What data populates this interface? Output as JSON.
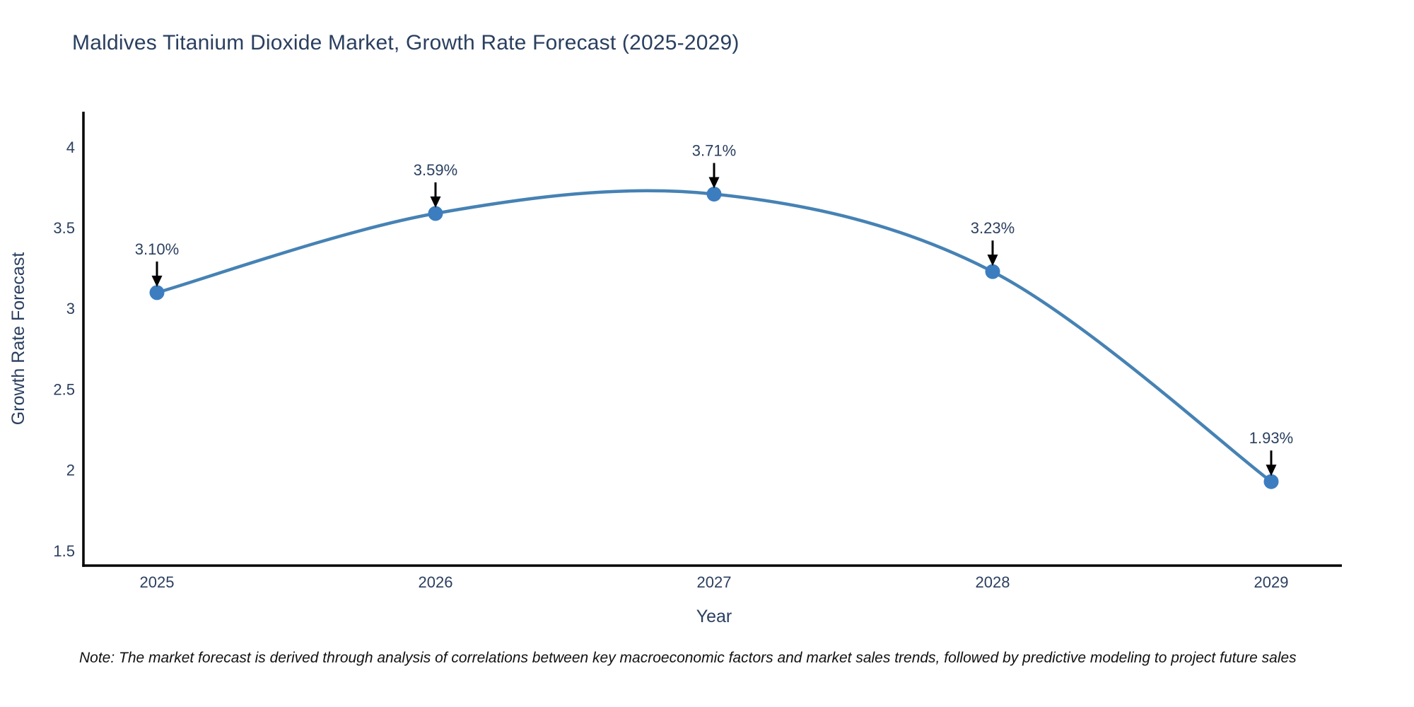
{
  "chart": {
    "title": "Maldives Titanium Dioxide Market, Growth Rate Forecast (2025-2029)"
  },
  "note": {
    "text": "Note: The market forecast is derived through analysis of correlations between key macroeconomic factors and market sales trends, followed by predictive modeling to project future sales"
  },
  "chart_data": {
    "type": "line",
    "title": "Maldives Titanium Dioxide Market, Growth Rate Forecast (2025-2029)",
    "xlabel": "Year",
    "ylabel": "Growth Rate Forecast",
    "categories": [
      "2025",
      "2026",
      "2027",
      "2028",
      "2029"
    ],
    "values": [
      3.1,
      3.59,
      3.71,
      3.23,
      1.93
    ],
    "point_labels": [
      "3.10%",
      "3.59%",
      "3.71%",
      "3.23%",
      "1.93%"
    ],
    "yticks": [
      1.5,
      2,
      2.5,
      3,
      3.5,
      4
    ],
    "ylim": [
      1.41,
      4.22
    ],
    "line_shape": "spline",
    "legend": "none",
    "grid": false,
    "colors": {
      "line": "#4682b4",
      "marker": "#3c7dc0",
      "axis_line": "#000000",
      "tick_text": "#2a3f5f",
      "axis_title_text": "#2a3f5f",
      "annotation_text": "#2a3f5f",
      "annotation_arrow": "#000000",
      "title_text": "#2a3f5f",
      "background": "#ffffff"
    }
  }
}
